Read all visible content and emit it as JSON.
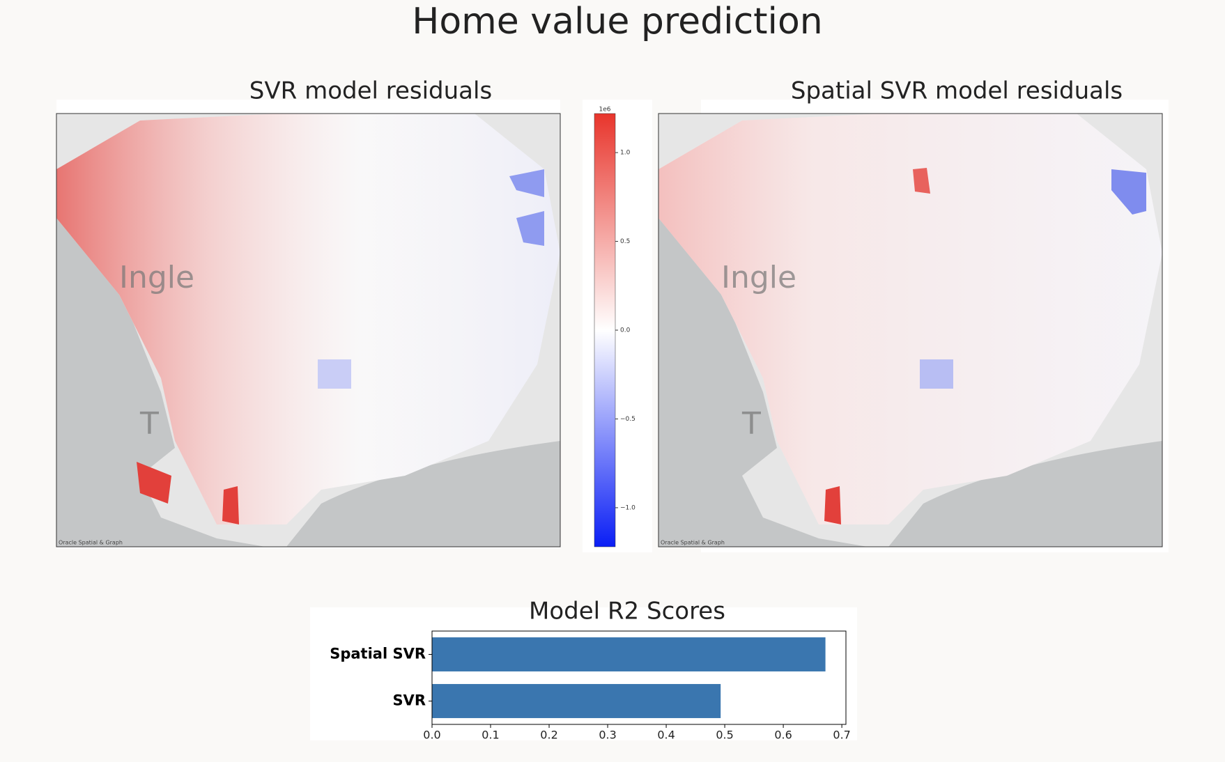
{
  "title": "Home value prediction",
  "maps": [
    {
      "title": "SVR model residuals",
      "attribution": "Oracle Spatial & Graph",
      "place_labels": [
        "Ingle",
        "T"
      ]
    },
    {
      "title": "Spatial SVR model residuals",
      "attribution": "Oracle Spatial & Graph",
      "place_labels": [
        "Ingle",
        "T"
      ]
    }
  ],
  "colorbar": {
    "multiplier": "1e6",
    "lim": [
      -1.22,
      1.22
    ],
    "ticks": [
      {
        "value": 1.0,
        "label": "1.0"
      },
      {
        "value": 0.5,
        "label": "0.5"
      },
      {
        "value": 0,
        "label": "0.0"
      },
      {
        "value": -0.5,
        "label": "−0.5"
      },
      {
        "value": -1.0,
        "label": "−1.0"
      }
    ],
    "colors": [
      "#0a1ef5",
      "#ffffff",
      "#e8352c"
    ]
  },
  "chart_data": {
    "type": "bar",
    "orientation": "horizontal",
    "title": "Model R2 Scores",
    "categories": [
      "Spatial SVR",
      "SVR"
    ],
    "values": [
      0.672,
      0.493
    ],
    "color": "#3a76af",
    "xlim": [
      0,
      0.707
    ],
    "xticks": [
      {
        "value": 0,
        "label": "0.0"
      },
      0.1,
      0.2,
      0.3,
      0.4,
      0.5,
      0.6,
      0.7
    ]
  }
}
